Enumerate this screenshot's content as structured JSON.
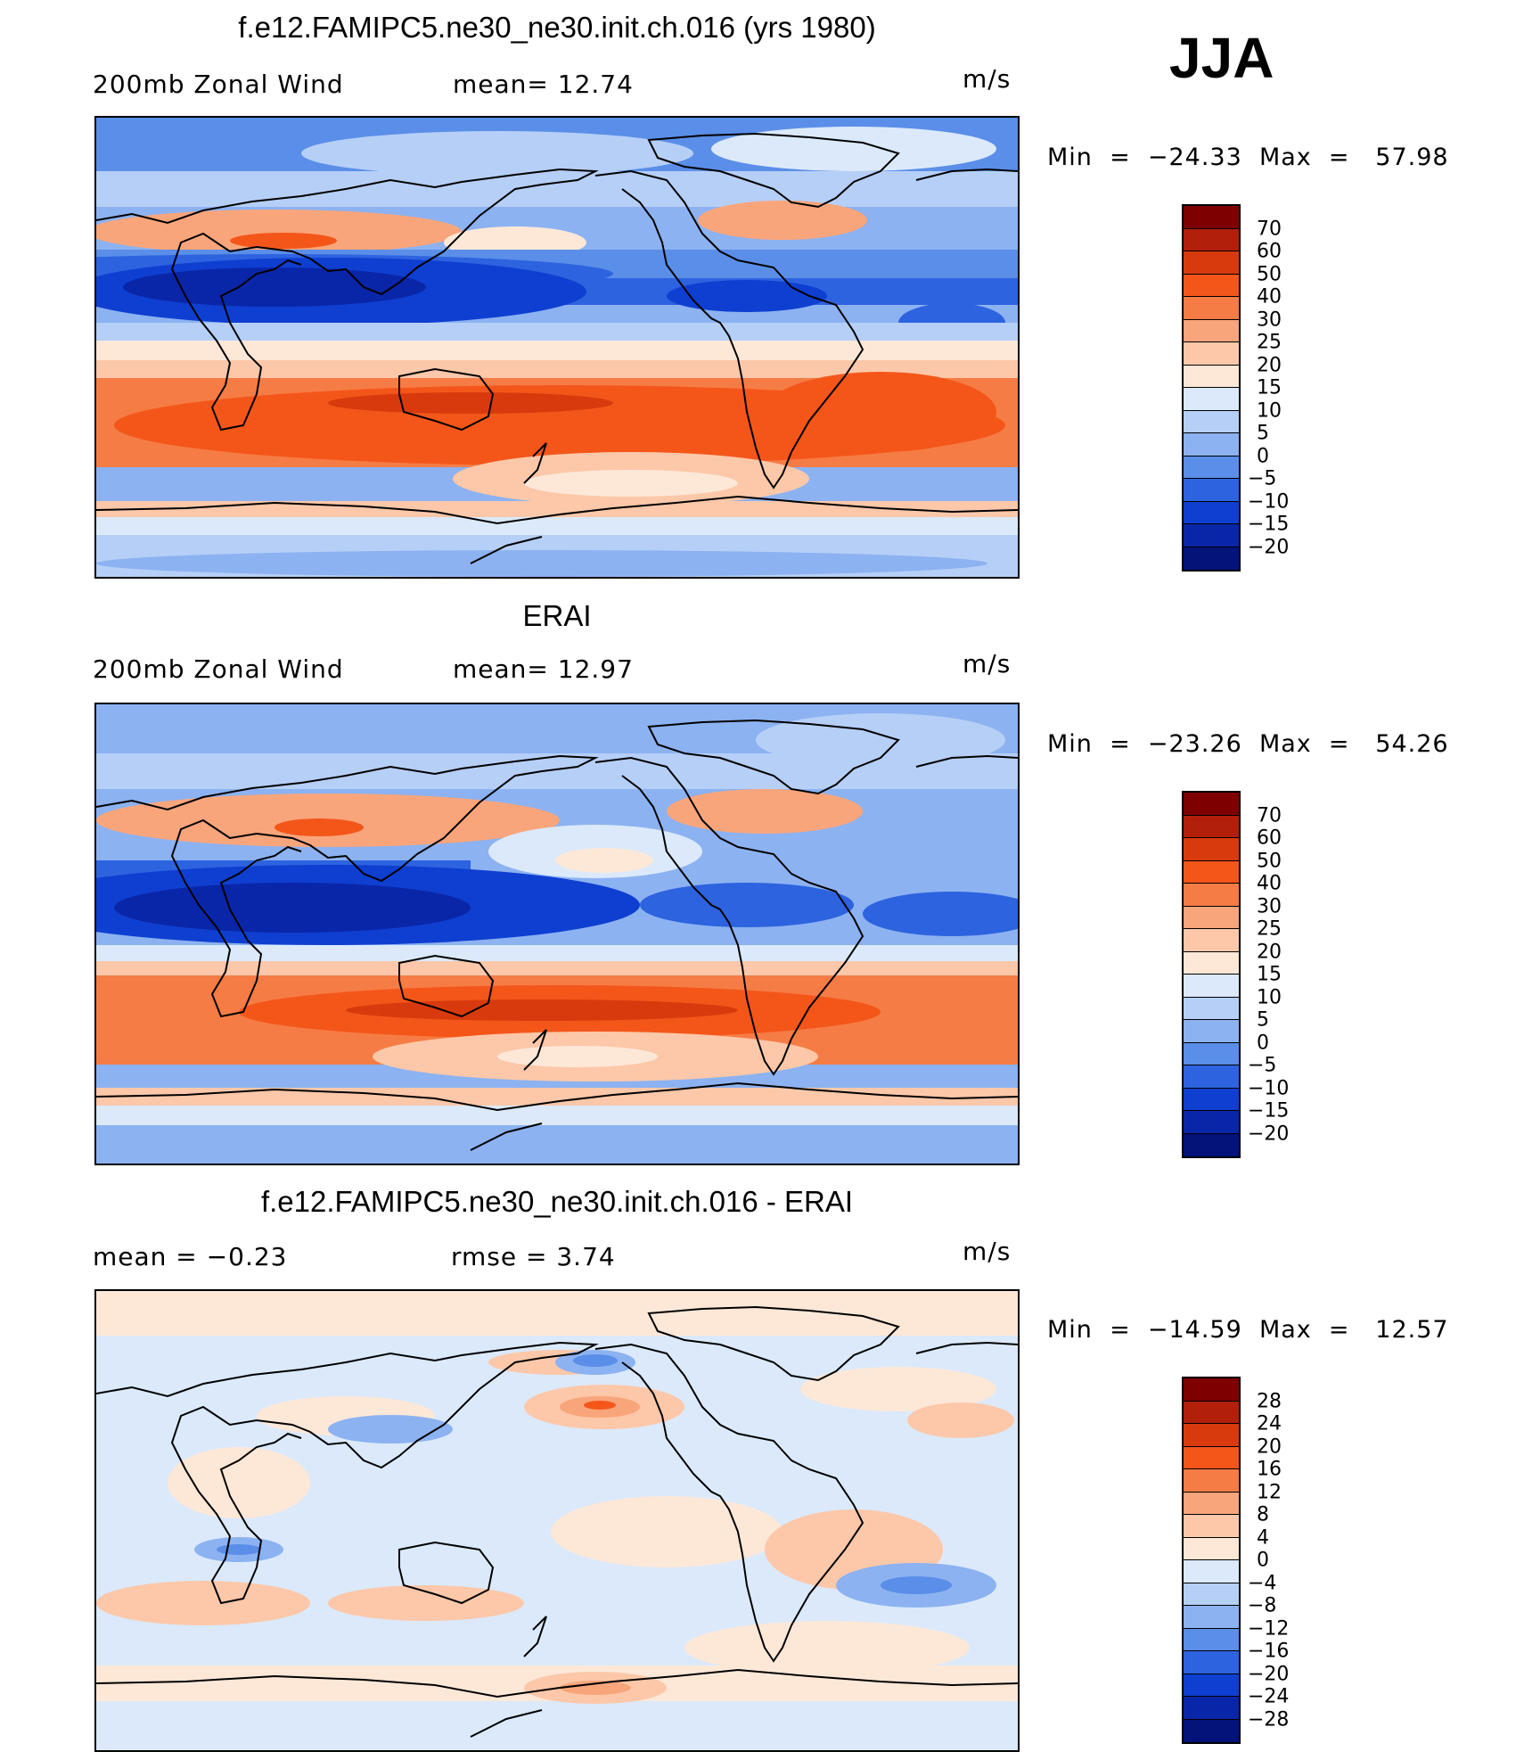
{
  "season": "JJA",
  "panels": [
    {
      "title": "f.e12.FAMIPC5.ne30_ne30.init.ch.016 (yrs 1980)",
      "left_label": "200mb  Zonal  Wind",
      "center_label": "mean=   12.74",
      "units": "m/s",
      "minmax": "Min  =  −24.33  Max  =   57.98",
      "legend_labels": [
        "70",
        "60",
        "50",
        "40",
        "30",
        "25",
        "20",
        "15",
        "10",
        "5",
        "0",
        "−5",
        "−10",
        "−15",
        "−20"
      ],
      "legend_colors": [
        "#7f0000",
        "#b21f0a",
        "#d93a0d",
        "#f4561a",
        "#f67c45",
        "#f9a57b",
        "#fcc8a9",
        "#fde8d8",
        "#dbe9fb",
        "#b6cff7",
        "#8cb2f1",
        "#5a8ee8",
        "#2d63df",
        "#0f3fd1",
        "#0a26a8",
        "#03137a"
      ]
    },
    {
      "title": "ERAI",
      "left_label": "200mb  Zonal  Wind",
      "center_label": "mean=   12.97",
      "units": "m/s",
      "minmax": "Min  =  −23.26  Max  =   54.26",
      "legend_labels": [
        "70",
        "60",
        "50",
        "40",
        "30",
        "25",
        "20",
        "15",
        "10",
        "5",
        "0",
        "−5",
        "−10",
        "−15",
        "−20"
      ],
      "legend_colors": [
        "#7f0000",
        "#b21f0a",
        "#d93a0d",
        "#f4561a",
        "#f67c45",
        "#f9a57b",
        "#fcc8a9",
        "#fde8d8",
        "#dbe9fb",
        "#b6cff7",
        "#8cb2f1",
        "#5a8ee8",
        "#2d63df",
        "#0f3fd1",
        "#0a26a8",
        "#03137a"
      ]
    },
    {
      "title": "f.e12.FAMIPC5.ne30_ne30.init.ch.016 - ERAI",
      "left_label": "mean  =    −0.23",
      "center_label": "rmse  =     3.74",
      "units": "m/s",
      "minmax": "Min  =  −14.59  Max  =   12.57",
      "legend_labels": [
        "28",
        "24",
        "20",
        "16",
        "12",
        "8",
        "4",
        "0",
        "−4",
        "−8",
        "−12",
        "−16",
        "−20",
        "−24",
        "−28"
      ],
      "legend_colors": [
        "#7f0000",
        "#b21f0a",
        "#d93a0d",
        "#f4561a",
        "#f67c45",
        "#f9a57b",
        "#fcc8a9",
        "#fde8d8",
        "#dbe9fb",
        "#b6cff7",
        "#8cb2f1",
        "#5a8ee8",
        "#2d63df",
        "#0f3fd1",
        "#0a26a8",
        "#03137a"
      ]
    }
  ]
}
